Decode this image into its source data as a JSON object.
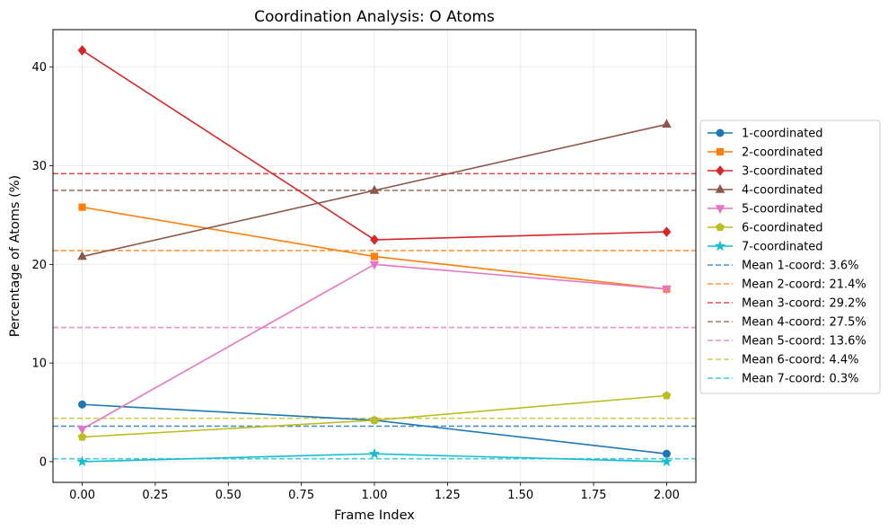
{
  "chart_data": {
    "type": "line",
    "title": "Coordination Analysis: O Atoms",
    "xlabel": "Frame Index",
    "ylabel": "Percentage of Atoms (%)",
    "x": [
      0,
      1,
      2
    ],
    "xlim": [
      -0.1,
      2.1
    ],
    "ylim": [
      -2.1,
      43.8
    ],
    "xticks": [
      0.0,
      0.25,
      0.5,
      0.75,
      1.0,
      1.25,
      1.5,
      1.75,
      2.0
    ],
    "xtick_labels": [
      "0.00",
      "0.25",
      "0.50",
      "0.75",
      "1.00",
      "1.25",
      "1.50",
      "1.75",
      "2.00"
    ],
    "yticks": [
      0,
      10,
      20,
      30,
      40
    ],
    "ytick_labels": [
      "0",
      "10",
      "20",
      "30",
      "40"
    ],
    "grid": true,
    "legend_position": "outside-right",
    "series": [
      {
        "name": "1-coordinated",
        "values": [
          5.8,
          4.2,
          0.8
        ],
        "color": "#1f77b4",
        "marker": "circle"
      },
      {
        "name": "2-coordinated",
        "values": [
          25.8,
          20.8,
          17.5
        ],
        "color": "#ff7f0e",
        "marker": "square"
      },
      {
        "name": "3-coordinated",
        "values": [
          41.7,
          22.5,
          23.3
        ],
        "color": "#d62728",
        "marker": "diamond"
      },
      {
        "name": "4-coordinated",
        "values": [
          20.8,
          27.5,
          34.2
        ],
        "color": "#8c564b",
        "marker": "triangle-up"
      },
      {
        "name": "5-coordinated",
        "values": [
          3.3,
          20.0,
          17.5
        ],
        "color": "#e377c2",
        "marker": "triangle-down"
      },
      {
        "name": "6-coordinated",
        "values": [
          2.5,
          4.2,
          6.7
        ],
        "color": "#bcbd22",
        "marker": "pentagon"
      },
      {
        "name": "7-coordinated",
        "values": [
          0.0,
          0.8,
          0.0
        ],
        "color": "#17becf",
        "marker": "star"
      }
    ],
    "mean_lines": [
      {
        "name": "Mean 1-coord: 3.6%",
        "value": 3.6,
        "color": "#1f77b4"
      },
      {
        "name": "Mean 2-coord: 21.4%",
        "value": 21.4,
        "color": "#ff7f0e"
      },
      {
        "name": "Mean 3-coord: 29.2%",
        "value": 29.2,
        "color": "#d62728"
      },
      {
        "name": "Mean 4-coord: 27.5%",
        "value": 27.5,
        "color": "#8c564b"
      },
      {
        "name": "Mean 5-coord: 13.6%",
        "value": 13.6,
        "color": "#e377c2"
      },
      {
        "name": "Mean 6-coord: 4.4%",
        "value": 4.4,
        "color": "#bcbd22"
      },
      {
        "name": "Mean 7-coord: 0.3%",
        "value": 0.3,
        "color": "#17becf"
      }
    ]
  }
}
